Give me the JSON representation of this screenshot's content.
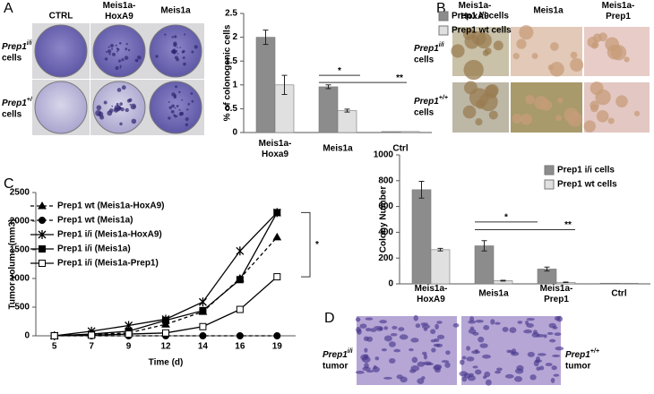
{
  "panels": {
    "A": {
      "letter": "A",
      "columns": [
        "CTRL",
        "Meis1a-HoxA9",
        "Meis1a"
      ],
      "rows": [
        {
          "name": "Prep1",
          "sup": "i/i",
          "unit": "cells"
        },
        {
          "name": "Prep1",
          "sup": "+/+",
          "unit": "cells"
        }
      ]
    },
    "B": {
      "letter": "B",
      "columns": [
        "Meis1a-HoxA9",
        "Meis1a",
        "Meis1a-Prep1"
      ],
      "rows": [
        {
          "name": "Prep1",
          "sup": "i/i",
          "unit": "cells"
        },
        {
          "name": "Prep1",
          "sup": "+/+",
          "unit": "cells"
        }
      ]
    },
    "C": {
      "letter": "C"
    },
    "D": {
      "letter": "D",
      "labels": [
        {
          "name": "Prep1",
          "sup": "i/i",
          "unit": "tumor"
        },
        {
          "name": "Prep1",
          "sup": "+/+",
          "unit": "tumor"
        }
      ]
    }
  },
  "chart_data": [
    {
      "type": "bar",
      "ylabel": "% of colonogenic cells",
      "categories": [
        "Meis1a-Hoxa9",
        "Meis1a",
        "Ctrl"
      ],
      "series": [
        {
          "name": "Prep1 i/i cells",
          "color": "#8c8c8c",
          "values": [
            2.0,
            0.96,
            0.02
          ],
          "errors": [
            0.15,
            0.04,
            0
          ]
        },
        {
          "name": "Prep1 wt cells",
          "color": "#e0e0e0",
          "values": [
            1.0,
            0.46,
            0.02
          ],
          "errors": [
            0.2,
            0.03,
            0
          ]
        }
      ],
      "ylim": [
        0,
        2.5
      ],
      "yticks": [
        0,
        0.5,
        1,
        1.5,
        2,
        2.5
      ],
      "legend": "top-right",
      "annotations": [
        "*",
        "**"
      ]
    },
    {
      "type": "line",
      "xlabel": "Time (d)",
      "ylabel": "Tumor volume (mm3)",
      "categories": [
        "5",
        "7",
        "9",
        "12",
        "14",
        "16",
        "19"
      ],
      "series": [
        {
          "name": "Prep1 wt (Meis1a-HoxA9)",
          "color": "#000000",
          "marker": "triangle",
          "dash": true,
          "values": [
            0,
            20,
            50,
            200,
            420,
            1000,
            1720
          ]
        },
        {
          "name": "Prep1 wt (Meis1a)",
          "color": "#000000",
          "marker": "circle",
          "dash": true,
          "values": [
            0,
            0,
            0,
            0,
            0,
            0,
            0
          ]
        },
        {
          "name": "Prep1 i/i  (Meis1a-HoxA9)",
          "color": "#000000",
          "marker": "star",
          "dash": false,
          "values": [
            0,
            80,
            180,
            290,
            590,
            1480,
            2150
          ]
        },
        {
          "name": "Prep1 i/i (Meis1a)",
          "color": "#000000",
          "marker": "square",
          "dash": false,
          "values": [
            0,
            30,
            80,
            270,
            440,
            980,
            2150
          ]
        },
        {
          "name": "Prep1 i/i (Meis1a-Prep1)",
          "color": "#000000",
          "marker": "square-open",
          "dash": false,
          "values": [
            0,
            10,
            30,
            50,
            160,
            460,
            1030
          ]
        }
      ],
      "ylim": [
        0,
        2500
      ],
      "yticks": [
        0,
        500,
        1000,
        1500,
        2000,
        2500
      ],
      "legend": "top-left",
      "annotations": [
        "*"
      ]
    },
    {
      "type": "bar",
      "ylabel": "Colony Number",
      "categories": [
        "Meis1a-HoxA9",
        "Meis1a",
        "Meis1a-Prep1",
        "Ctrl"
      ],
      "series": [
        {
          "name": "Prep1 i/i cells",
          "color": "#8c8c8c",
          "values": [
            730,
            295,
            115,
            5
          ],
          "errors": [
            65,
            40,
            15,
            0
          ]
        },
        {
          "name": "Prep1 wt cells",
          "color": "#e0e0e0",
          "values": [
            265,
            25,
            12,
            5
          ],
          "errors": [
            10,
            3,
            2,
            0
          ]
        }
      ],
      "ylim": [
        0,
        1000
      ],
      "yticks": [
        0,
        200,
        400,
        600,
        800,
        1000
      ],
      "legend": "top-right",
      "annotations": [
        "*",
        "**"
      ]
    }
  ]
}
